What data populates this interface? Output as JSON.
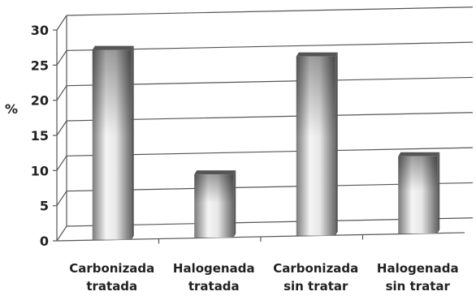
{
  "chart_data": {
    "type": "bar",
    "title": "",
    "xlabel": "",
    "ylabel": "%",
    "ylim": [
      0,
      30
    ],
    "yticks": [
      0,
      5,
      10,
      15,
      20,
      25,
      30
    ],
    "grid": true,
    "categories": [
      [
        "Carbonizada",
        "tratada"
      ],
      [
        "Halogenada",
        "tratada"
      ],
      [
        "Carbonizada",
        "sin tratar"
      ],
      [
        "Halogenada",
        "sin tratar"
      ]
    ],
    "values": [
      27,
      9,
      25.5,
      11
    ],
    "bar_color": "#9a9a9a"
  }
}
